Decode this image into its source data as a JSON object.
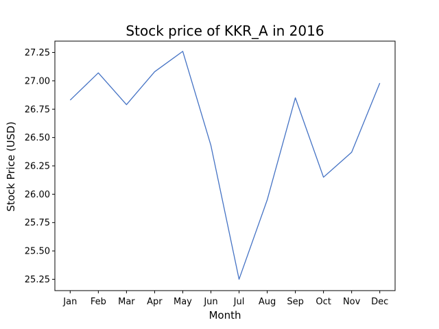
{
  "chart_data": {
    "type": "line",
    "title": "Stock price of KKR_A in 2016",
    "xlabel": "Month",
    "ylabel": "Stock Price (USD)",
    "categories": [
      "Jan",
      "Feb",
      "Mar",
      "Apr",
      "May",
      "Jun",
      "Jul",
      "Aug",
      "Sep",
      "Oct",
      "Nov",
      "Dec"
    ],
    "series": [
      {
        "values": [
          26.83,
          27.07,
          26.79,
          27.08,
          27.26,
          26.43,
          25.25,
          25.95,
          26.85,
          26.15,
          26.37,
          26.98
        ],
        "color": "#4472c4"
      }
    ],
    "ylim": [
      25.15,
      27.35
    ],
    "yticks": [
      25.25,
      25.5,
      25.75,
      26.0,
      26.25,
      26.5,
      26.75,
      27.0,
      27.25
    ],
    "ytick_labels": [
      "25.25",
      "25.50",
      "25.75",
      "26.00",
      "26.25",
      "26.50",
      "26.75",
      "27.00",
      "27.25"
    ],
    "grid": false,
    "legend": false
  }
}
